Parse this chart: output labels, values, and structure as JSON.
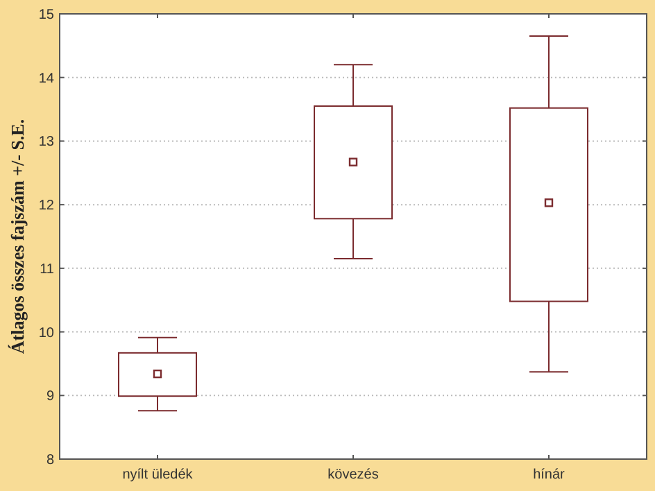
{
  "chart_data": {
    "type": "box",
    "ylabel": "Átlagos összes fajszám +/- S.E.",
    "categories": [
      "nyílt üledék",
      "kövezés",
      "hínár"
    ],
    "color": "#7b2b2e",
    "marker": "square",
    "boxes": [
      {
        "low": 8.76,
        "q1": 8.99,
        "median": 9.34,
        "q3": 9.67,
        "high": 9.91
      },
      {
        "low": 11.15,
        "q1": 11.78,
        "median": 12.67,
        "q3": 13.55,
        "high": 14.2
      },
      {
        "low": 9.37,
        "q1": 10.48,
        "median": 12.03,
        "q3": 13.52,
        "high": 14.65
      }
    ],
    "ylim": [
      8,
      15
    ],
    "yticks": [
      8,
      9,
      10,
      11,
      12,
      13,
      14,
      15
    ],
    "grid": "y"
  }
}
